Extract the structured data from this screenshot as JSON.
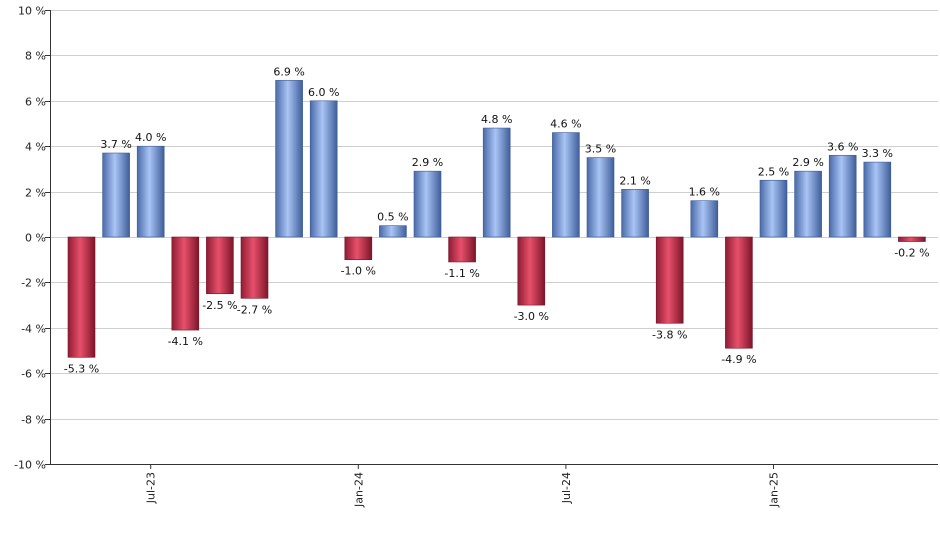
{
  "chart_data": {
    "type": "bar",
    "title": "",
    "xlabel": "",
    "ylabel": "",
    "ylim": [
      -10,
      10
    ],
    "y_ticks": [
      10,
      8,
      6,
      4,
      2,
      0,
      -2,
      -4,
      -6,
      -8,
      -10
    ],
    "y_tick_labels": [
      "10 %",
      "8 %",
      "6 %",
      "4 %",
      "2 %",
      "0 %",
      "-2 %",
      "-4 %",
      "-6 %",
      "-8 %",
      "-10 %"
    ],
    "grid": true,
    "positive_color": "#7b9fe0",
    "negative_color": "#c8324e",
    "x_tick_labels": [
      {
        "label": "Jul-23",
        "index": 2
      },
      {
        "label": "Jan-24",
        "index": 8
      },
      {
        "label": "Jul-24",
        "index": 14
      },
      {
        "label": "Jan-25",
        "index": 20
      }
    ],
    "values": [
      -5.3,
      3.7,
      4.0,
      -4.1,
      -2.5,
      -2.7,
      6.9,
      6.0,
      -1.0,
      0.5,
      2.9,
      -1.1,
      4.8,
      -3.0,
      4.6,
      3.5,
      2.1,
      -3.8,
      1.6,
      -4.9,
      2.5,
      2.9,
      3.6,
      3.3,
      -0.2
    ],
    "data_labels": [
      "-5.3 %",
      "3.7 %",
      "4.0 %",
      "-4.1 %",
      "-2.5 %",
      "-2.7 %",
      "6.9 %",
      "6.0 %",
      "-1.0 %",
      "0.5 %",
      "2.9 %",
      "-1.1 %",
      "4.8 %",
      "-3.0 %",
      "4.6 %",
      "3.5 %",
      "2.1 %",
      "-3.8 %",
      "1.6 %",
      "-4.9 %",
      "2.5 %",
      "2.9 %",
      "3.6 %",
      "3.3 %",
      "-0.2 %"
    ]
  }
}
